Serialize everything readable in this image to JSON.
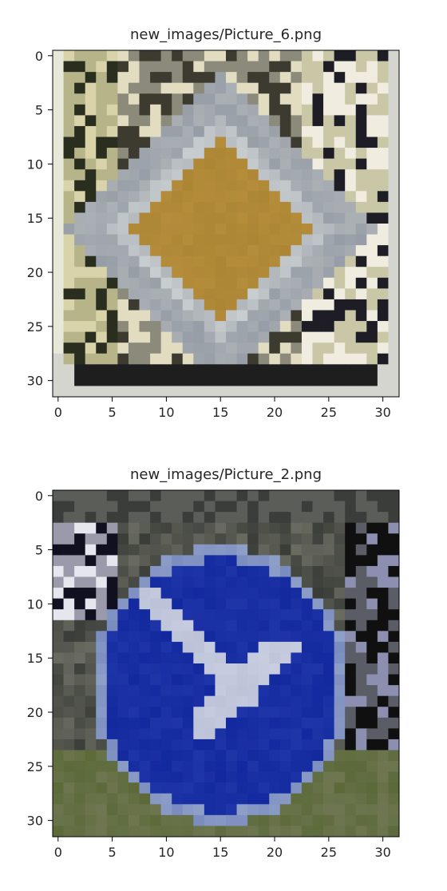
{
  "chart_data": [
    {
      "type": "heatmap",
      "title": "new_images/Picture_6.png",
      "description_colors": {
        "background": "#d9d8c9",
        "sign_border": "#aab0b4",
        "sign_fill": "#b48c3a",
        "dark_frame": "#1a1a1a"
      },
      "xlabel": "",
      "ylabel": "",
      "xlim": [
        -0.5,
        31.5
      ],
      "ylim": [
        31.5,
        -0.5
      ],
      "xticks": [
        0,
        5,
        10,
        15,
        20,
        25,
        30
      ],
      "yticks": [
        0,
        5,
        10,
        15,
        20,
        25,
        30
      ],
      "xtick_labels": [
        "0",
        "5",
        "10",
        "15",
        "20",
        "25",
        "30"
      ],
      "ytick_labels": [
        "0",
        "5",
        "10",
        "15",
        "20",
        "25",
        "30"
      ],
      "grid": false
    },
    {
      "type": "heatmap",
      "title": "new_images/Picture_2.png",
      "description_colors": {
        "background": "#6b6e5c",
        "sign_fill": "#1e35a8",
        "sign_ring": "#8fa0c8",
        "arrow": "#c8cde0",
        "grass": "#5c6a3a"
      },
      "xlabel": "",
      "ylabel": "",
      "xlim": [
        -0.5,
        31.5
      ],
      "ylim": [
        31.5,
        -0.5
      ],
      "xticks": [
        0,
        5,
        10,
        15,
        20,
        25,
        30
      ],
      "yticks": [
        0,
        5,
        10,
        15,
        20,
        25,
        30
      ],
      "xtick_labels": [
        "0",
        "5",
        "10",
        "15",
        "20",
        "25",
        "30"
      ],
      "ytick_labels": [
        "0",
        "5",
        "10",
        "15",
        "20",
        "25",
        "30"
      ],
      "grid": false
    }
  ]
}
